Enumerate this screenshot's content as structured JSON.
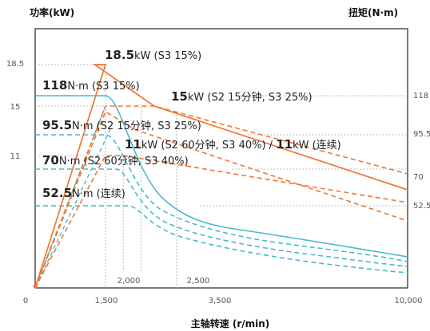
{
  "chart_data": {
    "type": "line",
    "xlabel": "主轴转速 (r/min)",
    "ylabel_left": "功率(kW)",
    "ylabel_right": "扭矩(N·m)",
    "x_ticks_bottom": [
      "0",
      "1,500",
      "3,500",
      "10,000"
    ],
    "x_ticks_inner": [
      "2,000",
      "2,500"
    ],
    "y_ticks_left": [
      "18.5",
      "15",
      "11"
    ],
    "y_ticks_right": [
      "118",
      "95.5",
      "70",
      "52.5"
    ],
    "colors": {
      "power": "#ee7733",
      "torque": "#44bbcc",
      "grid": "#aaaaaa",
      "frame": "#333333"
    },
    "power_series": [
      {
        "label_value": "18.5",
        "label_unit": "kW (S3 15%)",
        "style": "solid",
        "x": [
          0,
          1500,
          2500,
          3500,
          10000
        ],
        "y": [
          0,
          18.5,
          18.5,
          15,
          11
        ]
      },
      {
        "label_value": "15",
        "label_unit": "kW (S2 15分钟, S3 25%)",
        "style": "dashed",
        "x": [
          0,
          1500,
          3500,
          10000
        ],
        "y": [
          0,
          15,
          15,
          11
        ]
      },
      {
        "label_value": "11",
        "label_unit": "kW (S2 60分钟, S3 40%) / ",
        "label_value2": "11",
        "label_unit2": "kW (连续)",
        "style": "dashed",
        "x": [
          0,
          1500,
          2000,
          10000
        ],
        "y": [
          0,
          11,
          11,
          11
        ]
      }
    ],
    "torque_series": [
      {
        "label_value": "118",
        "label_unit": "N·m (S3 15%)",
        "style": "solid",
        "value": 118
      },
      {
        "label_value": "95.5",
        "label_unit": "N·m (S2 15分钟, S3 25%)",
        "style": "dashed",
        "value": 95.5
      },
      {
        "label_value": "70",
        "label_unit": "N·m (S2 60分钟, S3 40%)",
        "style": "dashed",
        "value": 70
      },
      {
        "label_value": "52.5",
        "label_unit": "N·m (连续)",
        "style": "dashed",
        "value": 52.5
      }
    ]
  }
}
